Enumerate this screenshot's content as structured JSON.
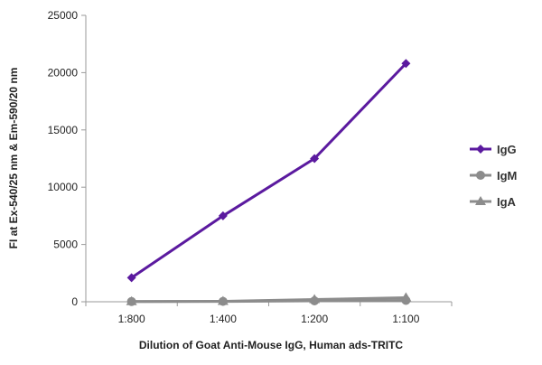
{
  "chart_data": {
    "type": "line",
    "categories": [
      "1:800",
      "1:400",
      "1:200",
      "1:100"
    ],
    "series": [
      {
        "name": "IgG",
        "values": [
          2100,
          7500,
          12500,
          20800
        ],
        "color": "#5b1a9f",
        "marker": "diamond"
      },
      {
        "name": "IgM",
        "values": [
          20,
          30,
          80,
          120
        ],
        "color": "#8c8c8c",
        "marker": "circle"
      },
      {
        "name": "IgA",
        "values": [
          20,
          40,
          200,
          350
        ],
        "color": "#8c8c8c",
        "marker": "triangle"
      }
    ],
    "xlabel": "Dilution of Goat Anti-Mouse IgG, Human ads-TRITC",
    "ylabel": "FI at Ex-540/25 nm & Em-590/20 nm",
    "ylim": [
      0,
      25000
    ],
    "yticks": [
      "0",
      "5000",
      "10000",
      "15000",
      "20000",
      "25000"
    ],
    "grid": false,
    "legend_position": "right"
  }
}
